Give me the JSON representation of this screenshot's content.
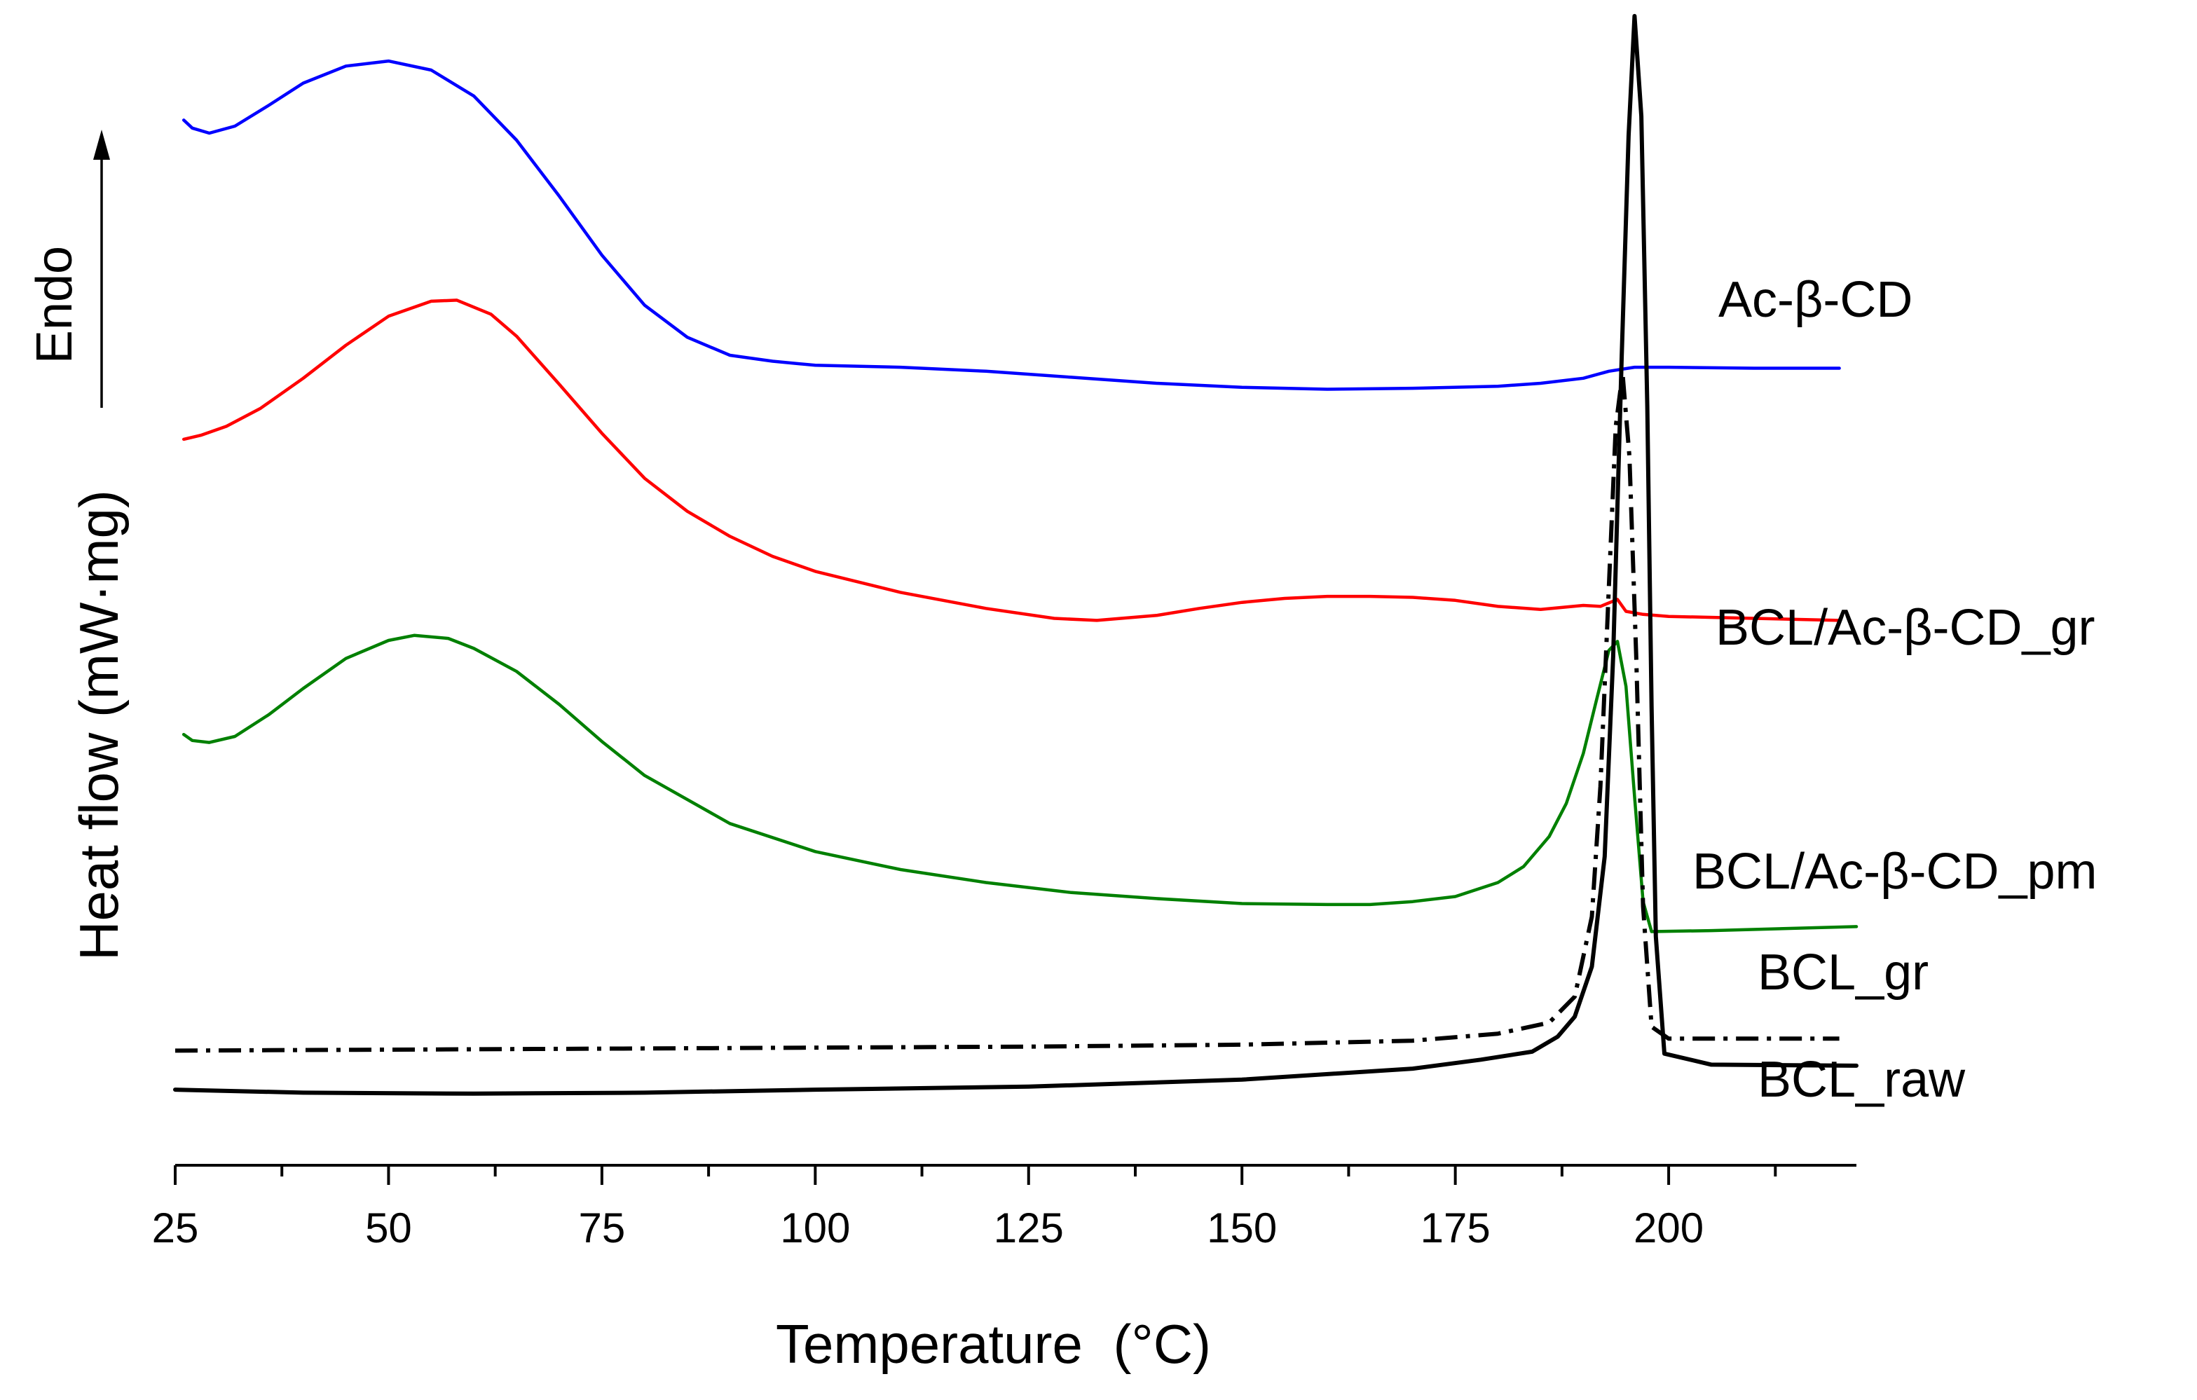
{
  "chart_data": {
    "type": "line",
    "title": "",
    "xlabel": "Temperature",
    "xlabel_unit": "(°C)",
    "ylabel": "Heat flow (mW·mg)",
    "endo_label": "Endo",
    "xlim": [
      25,
      222
    ],
    "ylim": [
      0,
      100
    ],
    "xticks": [
      25,
      50,
      75,
      100,
      125,
      150,
      175,
      200
    ],
    "grid": false,
    "y_axis_numbers_shown": false,
    "series": [
      {
        "name": "Ac-β-CD",
        "color": "#0000ff",
        "style": "solid",
        "x": [
          26,
          27,
          29,
          32,
          36,
          40,
          45,
          50,
          55,
          60,
          65,
          70,
          75,
          80,
          85,
          90,
          95,
          100,
          110,
          120,
          130,
          140,
          150,
          160,
          170,
          180,
          185,
          190,
          193,
          196,
          200,
          210,
          220
        ],
        "y": [
          93.6,
          92.8,
          92.3,
          93.0,
          95.1,
          97.3,
          99.0,
          99.5,
          98.6,
          96.0,
          91.6,
          86.0,
          80.1,
          75.1,
          71.9,
          70.1,
          69.5,
          69.1,
          68.9,
          68.5,
          67.9,
          67.3,
          66.9,
          66.7,
          66.8,
          67.0,
          67.3,
          67.8,
          68.5,
          68.9,
          68.9,
          68.8,
          68.8
        ]
      },
      {
        "name": "BCL/Ac-β-CD_gr",
        "color": "#ff0000",
        "style": "solid",
        "x": [
          26,
          28,
          31,
          35,
          40,
          45,
          50,
          55,
          58,
          62,
          65,
          70,
          75,
          80,
          85,
          90,
          95,
          100,
          110,
          120,
          128,
          133,
          140,
          145,
          150,
          155,
          160,
          165,
          170,
          175,
          180,
          185,
          190,
          192,
          194,
          195,
          197,
          200,
          210,
          220
        ],
        "y": [
          61.7,
          62.1,
          63.0,
          64.8,
          67.8,
          71.1,
          74.0,
          75.5,
          75.6,
          74.2,
          72.0,
          67.2,
          62.3,
          57.8,
          54.5,
          52.0,
          50.0,
          48.5,
          46.4,
          44.8,
          43.8,
          43.6,
          44.1,
          44.8,
          45.4,
          45.8,
          46.0,
          46.0,
          45.9,
          45.6,
          45.0,
          44.7,
          45.1,
          45.0,
          45.7,
          44.5,
          44.2,
          44.0,
          43.8,
          43.6
        ]
      },
      {
        "name": "BCL/Ac-β-CD_pm",
        "color": "#008000",
        "style": "solid",
        "x": [
          26,
          27,
          29,
          32,
          36,
          40,
          45,
          50,
          53,
          57,
          60,
          65,
          70,
          75,
          80,
          90,
          100,
          110,
          120,
          130,
          140,
          150,
          160,
          165,
          170,
          175,
          180,
          183,
          186,
          188,
          190,
          191.5,
          193,
          194,
          195,
          196,
          197,
          198,
          205,
          222
        ],
        "y": [
          32.2,
          31.6,
          31.4,
          32.0,
          34.2,
          36.8,
          39.8,
          41.6,
          42.1,
          41.8,
          40.8,
          38.5,
          35.2,
          31.5,
          28.1,
          23.3,
          20.5,
          18.7,
          17.4,
          16.4,
          15.8,
          15.3,
          15.2,
          15.2,
          15.5,
          16.0,
          17.4,
          19.0,
          22.0,
          25.3,
          30.3,
          35.5,
          40.6,
          41.5,
          37.0,
          26.0,
          15.5,
          12.5,
          12.6,
          13.0
        ]
      },
      {
        "name": "BCL_gr",
        "color": "#000000",
        "style": "dashdot",
        "x": [
          25,
          50,
          75,
          100,
          125,
          150,
          170,
          180,
          186,
          189,
          191,
          192,
          193,
          193.8,
          194.6,
          195.4,
          196.2,
          197,
          198,
          200,
          210,
          220
        ],
        "y": [
          0.6,
          0.7,
          0.8,
          0.9,
          1.0,
          1.2,
          1.6,
          2.3,
          3.4,
          6.0,
          14.0,
          27.0,
          47.0,
          63.0,
          68.3,
          60.0,
          40.0,
          15.0,
          3.0,
          1.8,
          1.8,
          1.8
        ]
      },
      {
        "name": "BCL_raw",
        "color": "#000000",
        "style": "solid",
        "x": [
          25,
          40,
          60,
          80,
          100,
          125,
          150,
          170,
          178,
          184,
          187,
          189,
          191,
          192.5,
          193.5,
          194.5,
          195.3,
          196,
          196.8,
          197.5,
          198,
          198.5,
          199.5,
          205,
          222
        ],
        "y": [
          -3.3,
          -3.6,
          -3.7,
          -3.6,
          -3.3,
          -3.0,
          -2.3,
          -1.2,
          -0.3,
          0.5,
          2.0,
          4.0,
          9.0,
          20.0,
          40.0,
          70.0,
          92.0,
          104.0,
          94.0,
          65.0,
          35.0,
          12.0,
          0.3,
          -0.8,
          -0.9
        ]
      }
    ],
    "annotations": [
      {
        "text": "Ac-β-CD",
        "series": "Ac-β-CD"
      },
      {
        "text": "BCL/Ac-β-CD_gr",
        "series": "BCL/Ac-β-CD_gr"
      },
      {
        "text": "BCL/Ac-β-CD_pm",
        "series": "BCL/Ac-β-CD_pm"
      },
      {
        "text": "BCL_gr",
        "series": "BCL_gr"
      },
      {
        "text": "BCL_raw",
        "series": "BCL_raw"
      }
    ]
  }
}
